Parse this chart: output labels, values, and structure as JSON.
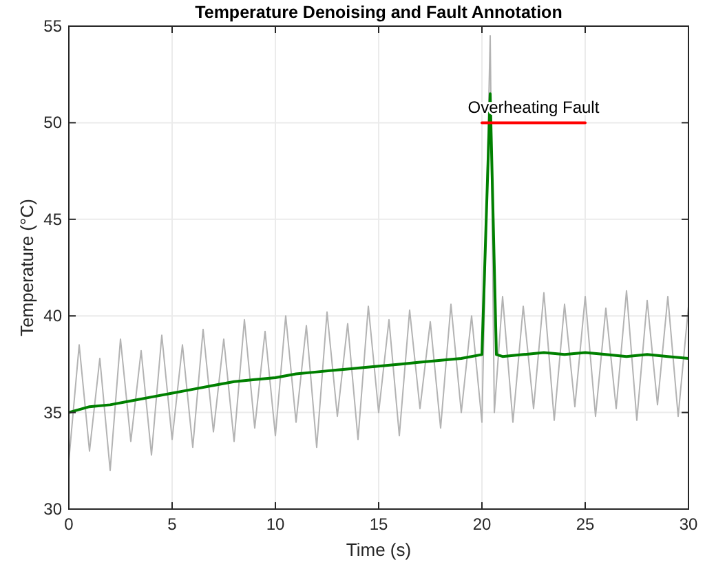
{
  "chart_data": {
    "type": "line",
    "title": "Temperature Denoising and Fault Annotation",
    "xlabel": "Time (s)",
    "ylabel": "Temperature (°C)",
    "xlim": [
      0,
      30
    ],
    "ylim": [
      30,
      55
    ],
    "xticks": [
      0,
      5,
      10,
      15,
      20,
      25,
      30
    ],
    "yticks": [
      30,
      35,
      40,
      45,
      50,
      55
    ],
    "grid": true,
    "line_style": "solid",
    "marker": "none",
    "series": [
      {
        "color": "#b3b3b3",
        "x": [
          0,
          0.5,
          1,
          1.5,
          2,
          2.5,
          3,
          3.5,
          4,
          4.5,
          5,
          5.5,
          6,
          6.5,
          7,
          7.5,
          8,
          8.5,
          9,
          9.5,
          10,
          10.5,
          11,
          11.5,
          12,
          12.5,
          13,
          13.5,
          14,
          14.5,
          15,
          15.5,
          16,
          16.5,
          17,
          17.5,
          18,
          18.5,
          19,
          19.5,
          20,
          20.4,
          20.6,
          21,
          21.5,
          22,
          22.5,
          23,
          23.5,
          24,
          24.5,
          25,
          25.5,
          26,
          26.5,
          27,
          27.5,
          28,
          28.5,
          29,
          29.5,
          30
        ],
        "values": [
          32.5,
          38.5,
          33,
          37.8,
          32,
          38.8,
          33.5,
          38.2,
          32.8,
          39,
          33.6,
          38.5,
          33.2,
          39.3,
          34,
          38.8,
          33.5,
          39.8,
          34.2,
          39.2,
          33.8,
          40,
          34.5,
          39.5,
          33.2,
          40.2,
          34.8,
          39.6,
          33.6,
          40.5,
          35,
          39.8,
          33.8,
          40.3,
          35.2,
          39.7,
          34.2,
          40.6,
          35,
          40,
          34.5,
          54.5,
          35,
          41,
          34.5,
          40.5,
          35.2,
          41.2,
          34.6,
          40.6,
          35.3,
          41,
          34.8,
          40.4,
          35.2,
          41.3,
          34.6,
          40.8,
          35.4,
          41,
          34.8,
          40.5
        ]
      },
      {
        "color": "#008000",
        "x": [
          0,
          1,
          2,
          3,
          4,
          5,
          6,
          7,
          8,
          9,
          10,
          11,
          12,
          13,
          14,
          15,
          16,
          17,
          18,
          19,
          20,
          20.4,
          20.7,
          21,
          22,
          23,
          24,
          25,
          26,
          27,
          28,
          29,
          30
        ],
        "values": [
          35,
          35.3,
          35.4,
          35.6,
          35.8,
          36,
          36.2,
          36.4,
          36.6,
          36.7,
          36.8,
          37,
          37.1,
          37.2,
          37.3,
          37.4,
          37.5,
          37.6,
          37.7,
          37.8,
          38,
          51.5,
          38,
          37.9,
          38,
          38.1,
          38,
          38.1,
          38,
          37.9,
          38,
          37.9,
          37.8
        ]
      },
      {
        "color": "#ff0000",
        "x": [
          20,
          25
        ],
        "values": [
          50,
          50
        ]
      }
    ],
    "annotations": [
      {
        "text": "Overheating Fault",
        "x": 22.5,
        "y": 50
      }
    ]
  }
}
